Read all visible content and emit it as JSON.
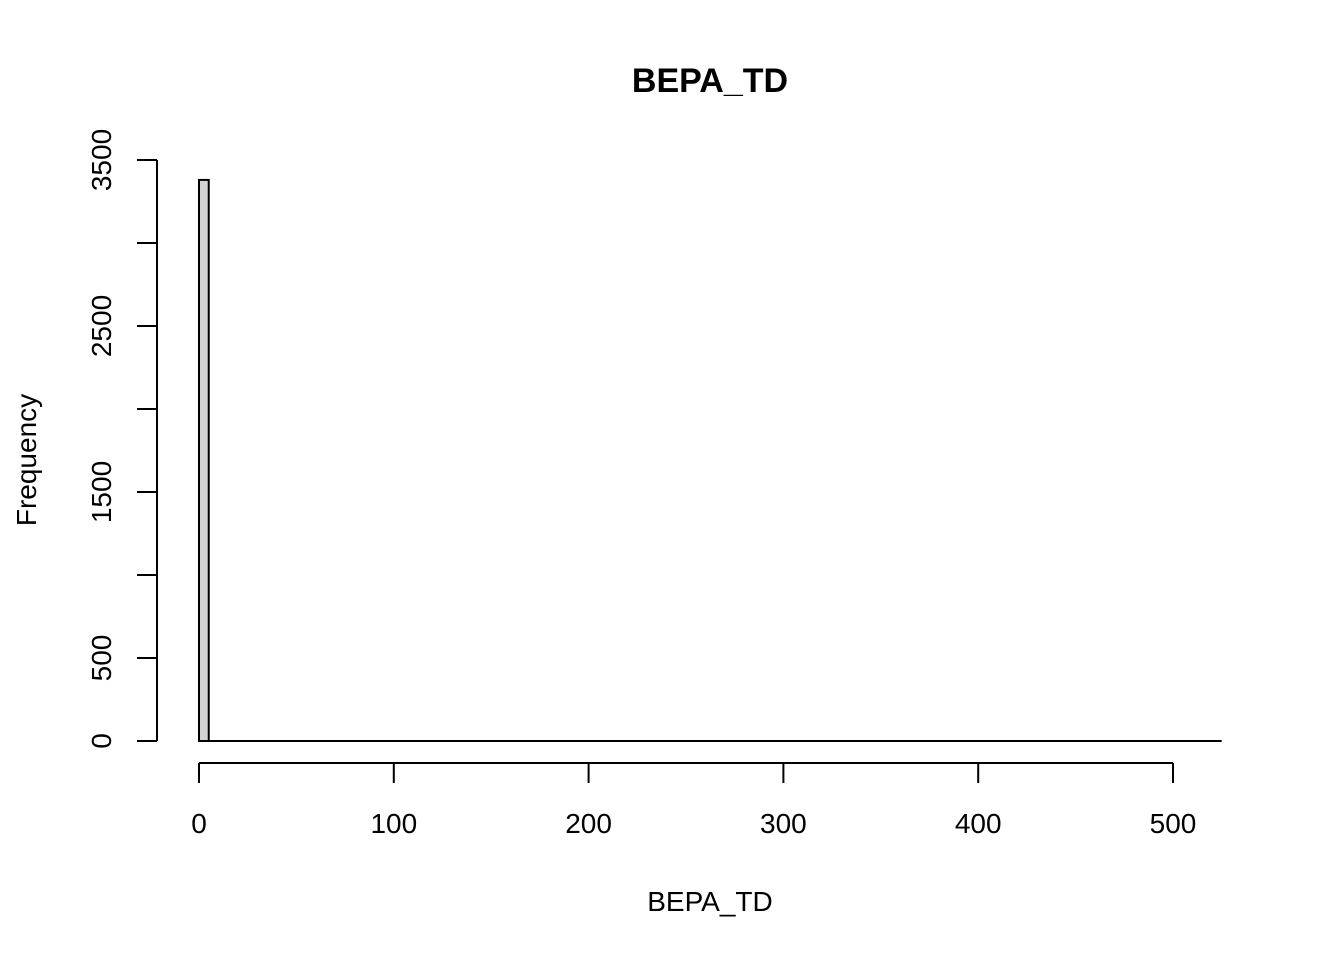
{
  "chart_data": {
    "type": "bar",
    "title": "BEPA_TD",
    "xlabel": "BEPA_TD",
    "ylabel": "Frequency",
    "x_ticks": [
      0,
      100,
      200,
      300,
      400,
      500
    ],
    "y_ticks": [
      0,
      500,
      1500,
      2500,
      3500
    ],
    "y_minor_ticks": [
      1000,
      2000,
      3000
    ],
    "xlim": [
      0,
      525
    ],
    "ylim": [
      0,
      3500
    ],
    "bin_width": 5,
    "bins": [
      {
        "x0": 0,
        "x1": 5,
        "count": 3380
      }
    ],
    "baseline_x_range": [
      0,
      525
    ],
    "bar_fill": "#d3d3d3",
    "grid": false,
    "legend": "none"
  }
}
